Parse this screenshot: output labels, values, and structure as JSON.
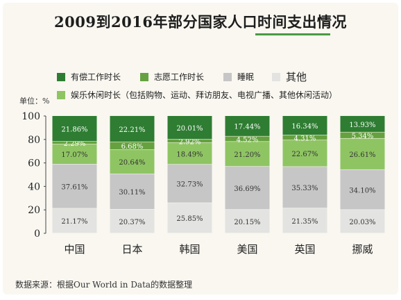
{
  "title": "2009到2016年部分国家人口时间支出情况",
  "unit_label": "单位：%",
  "source": "数据来源：根据Our World in Data的数据整理",
  "colors": {
    "paid_work": "#2e7d32",
    "volunteer": "#66a140",
    "sleep": "#c6c6c6",
    "other": "#e3e3e1",
    "leisure": "#8fc463"
  },
  "legend": [
    {
      "key": "paid_work",
      "label": "有偿工作时长"
    },
    {
      "key": "volunteer",
      "label": "志愿工作时长"
    },
    {
      "key": "sleep",
      "label": "睡眠"
    },
    {
      "key": "other",
      "label": "其他"
    },
    {
      "key": "leisure",
      "label": "娱乐休闲时长（包括购物、运动、拜访朋友、电视广播、其他休闲活动）"
    }
  ],
  "chart_data": {
    "type": "bar",
    "stacked": true,
    "categories": [
      "中国",
      "日本",
      "韩国",
      "美国",
      "英国",
      "挪威"
    ],
    "series": [
      {
        "key": "other",
        "name": "其他",
        "values": [
          21.17,
          20.37,
          25.85,
          20.15,
          21.35,
          20.03
        ],
        "labels": [
          "21.17%",
          "20.37%",
          "25.85%",
          "20.15%",
          "21.35%",
          "20.03%"
        ]
      },
      {
        "key": "sleep",
        "name": "睡眠",
        "values": [
          37.61,
          30.11,
          32.73,
          36.69,
          35.33,
          34.1
        ],
        "labels": [
          "37.61%",
          "30.11%",
          "32.73%",
          "36.69%",
          "35.33%",
          "34.10%"
        ]
      },
      {
        "key": "leisure",
        "name": "娱乐休闲时长（包括购物、运动、拜访朋友、电视广播、其他休闲活动）",
        "values": [
          17.07,
          20.64,
          18.49,
          21.2,
          22.67,
          26.61
        ],
        "labels": [
          "17.07%",
          "20.64%",
          "18.49%",
          "21.20%",
          "22.67%",
          "26.61%"
        ]
      },
      {
        "key": "volunteer",
        "name": "志愿工作时长",
        "values": [
          2.29,
          6.68,
          2.92,
          4.52,
          4.31,
          5.34
        ],
        "labels": [
          "2.29%",
          "6.68%",
          "2.92%",
          "4.52%",
          "4.31%",
          "5.34%"
        ]
      },
      {
        "key": "paid_work",
        "name": "有偿工作时长",
        "values": [
          21.86,
          22.21,
          20.01,
          17.44,
          16.34,
          13.93
        ],
        "labels": [
          "21.86%",
          "22.21%",
          "20.01%",
          "17.44%",
          "16.34%",
          "13.93%"
        ]
      }
    ],
    "ylim": [
      0,
      100
    ],
    "yticks": [
      "0",
      "20",
      "40",
      "60",
      "80",
      "100"
    ],
    "grid": false,
    "legend_position": "top"
  }
}
